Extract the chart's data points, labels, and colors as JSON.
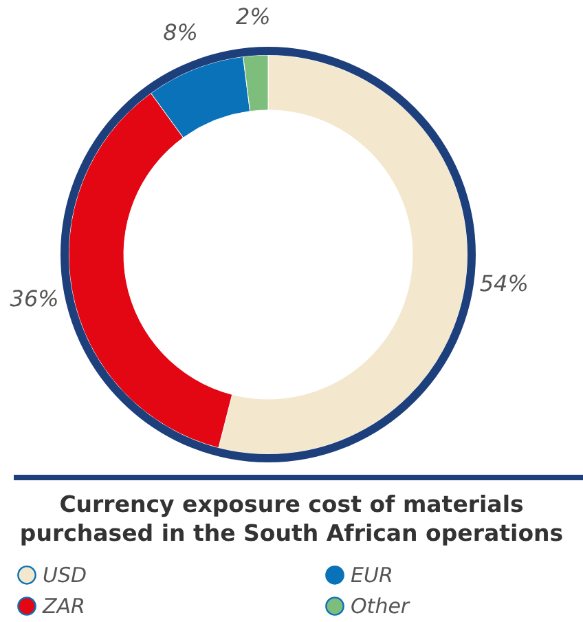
{
  "chart_data": {
    "type": "donut",
    "title": "Currency exposure cost of materials purchased in the South African operations",
    "categories": [
      "USD",
      "ZAR",
      "EUR",
      "Other"
    ],
    "values": [
      54,
      36,
      8,
      2
    ],
    "colors": [
      "#f3e7cd",
      "#e30613",
      "#0a72b8",
      "#7dbe7d"
    ],
    "value_labels": [
      "54%",
      "36%",
      "8%",
      "2%"
    ],
    "legend": "bottom"
  }
}
